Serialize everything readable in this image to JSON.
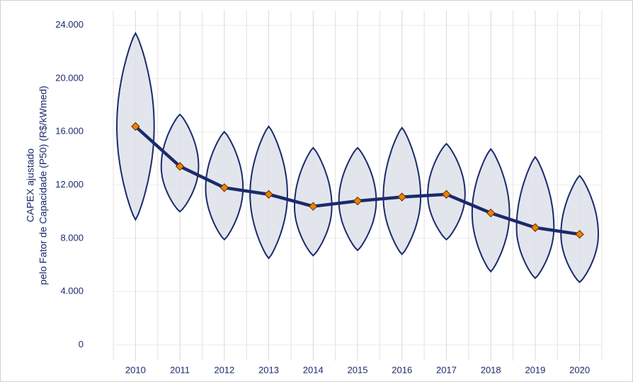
{
  "chart_data": {
    "type": "violin",
    "y_label_lines": [
      "CAPEX ajustado",
      "pelo Fator de Capacidade (P50)  (R$/kWmed)"
    ],
    "categories": [
      "2010",
      "2011",
      "2012",
      "2013",
      "2014",
      "2015",
      "2016",
      "2017",
      "2018",
      "2019",
      "2020"
    ],
    "values": [
      16400,
      13400,
      11800,
      11300,
      10400,
      10800,
      11100,
      11300,
      9900,
      8800,
      8300
    ],
    "violin_min": [
      9400,
      10000,
      7900,
      6500,
      6700,
      7100,
      6800,
      7900,
      5500,
      5000,
      4700
    ],
    "violin_max": [
      23400,
      17300,
      16000,
      16400,
      14800,
      14800,
      16300,
      15100,
      14700,
      14100,
      12700
    ],
    "color": "#1a2a6c",
    "fill": "#dfe2ea",
    "marker_color": "#f08000",
    "ylim": [
      -1200,
      25100
    ],
    "yticks": [
      {
        "value": 0,
        "label": "0"
      },
      {
        "value": 4000,
        "label": "4.000"
      },
      {
        "value": 8000,
        "label": "8.000"
      },
      {
        "value": 12000,
        "label": "12.000"
      },
      {
        "value": 16000,
        "label": "16.000"
      },
      {
        "value": 20000,
        "label": "20.000"
      },
      {
        "value": 24000,
        "label": "24.000"
      }
    ],
    "grid": true
  }
}
